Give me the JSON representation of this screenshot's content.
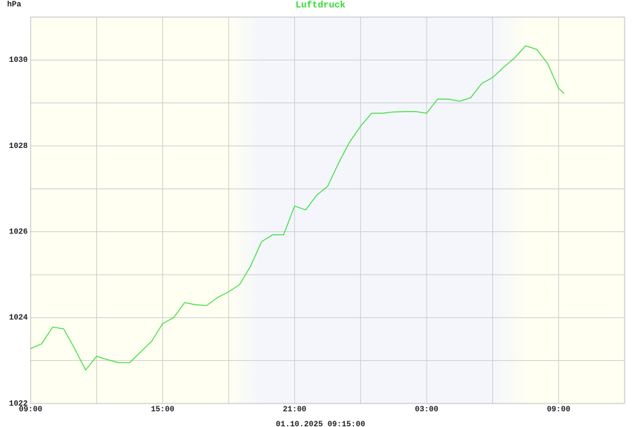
{
  "chart_data": {
    "type": "line",
    "title": "Luftdruck",
    "y_label": "hPa",
    "footer": "01.10.2025 09:15:00",
    "color": "#33dd33",
    "x": [
      0,
      0.5,
      1,
      1.5,
      2,
      2.5,
      3,
      3.5,
      4,
      4.5,
      5,
      5.5,
      6,
      6.5,
      7,
      7.5,
      8,
      8.5,
      9,
      9.5,
      10,
      10.5,
      11,
      11.5,
      12,
      12.5,
      13,
      13.5,
      14,
      14.5,
      15,
      15.5,
      16,
      16.5,
      17,
      17.5,
      18,
      18.5,
      19,
      19.5,
      20,
      20.5,
      21,
      21.5,
      22,
      22.5,
      23,
      23.5,
      24,
      24.25
    ],
    "values": [
      1023.28,
      1023.39,
      1023.78,
      1023.74,
      1023.28,
      1022.78,
      1023.1,
      1023.02,
      1022.95,
      1022.95,
      1023.2,
      1023.45,
      1023.86,
      1024.0,
      1024.35,
      1024.3,
      1024.28,
      1024.47,
      1024.6,
      1024.77,
      1025.2,
      1025.77,
      1025.93,
      1025.93,
      1026.6,
      1026.51,
      1026.85,
      1027.06,
      1027.6,
      1028.09,
      1028.46,
      1028.76,
      1028.76,
      1028.79,
      1028.8,
      1028.8,
      1028.76,
      1029.09,
      1029.09,
      1029.04,
      1029.12,
      1029.45,
      1029.59,
      1029.83,
      1030.05,
      1030.33,
      1030.25,
      1029.92,
      1029.34,
      1029.22
    ],
    "xlim": [
      0,
      27
    ],
    "xticks": [
      {
        "value": 0,
        "label": "09:00"
      },
      {
        "value": 6,
        "label": "15:00"
      },
      {
        "value": 12,
        "label": "21:00"
      },
      {
        "value": 18,
        "label": "03:00"
      },
      {
        "value": 24,
        "label": "09:00"
      }
    ],
    "xminor": [
      3,
      9,
      15,
      21
    ],
    "ylim": [
      1022,
      1031
    ],
    "yticks": [
      1022,
      1024,
      1026,
      1028,
      1030
    ],
    "yminor": [
      1023,
      1025,
      1027,
      1029
    ],
    "grid": true
  }
}
